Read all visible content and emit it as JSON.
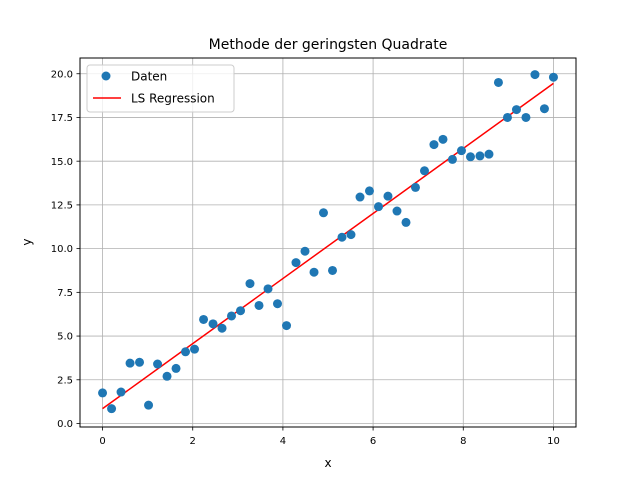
{
  "chart_data": {
    "type": "scatter",
    "title": "Methode der geringsten Quadrate",
    "xlabel": "x",
    "ylabel": "y",
    "xlim": [
      -0.5,
      10.5
    ],
    "ylim": [
      -0.2,
      20.9
    ],
    "xticks": [
      0,
      2,
      4,
      6,
      8,
      10
    ],
    "yticks": [
      0.0,
      2.5,
      5.0,
      7.5,
      10.0,
      12.5,
      15.0,
      17.5,
      20.0
    ],
    "xtick_labels": [
      "0",
      "2",
      "4",
      "6",
      "8",
      "10"
    ],
    "ytick_labels": [
      "0.0",
      "2.5",
      "5.0",
      "7.5",
      "10.0",
      "12.5",
      "15.0",
      "17.5",
      "20.0"
    ],
    "grid": true,
    "legend_position": "top-left",
    "series": [
      {
        "name": "Daten",
        "kind": "scatter",
        "color": "#1f77b4",
        "x": [
          0.0,
          0.2,
          0.41,
          0.61,
          0.82,
          1.02,
          1.22,
          1.43,
          1.63,
          1.84,
          2.04,
          2.24,
          2.45,
          2.65,
          2.86,
          3.06,
          3.27,
          3.47,
          3.67,
          3.88,
          4.08,
          4.29,
          4.49,
          4.69,
          4.9,
          5.1,
          5.31,
          5.51,
          5.71,
          5.92,
          6.12,
          6.33,
          6.53,
          6.73,
          6.94,
          7.14,
          7.35,
          7.55,
          7.76,
          7.96,
          8.16,
          8.37,
          8.57,
          8.78,
          8.98,
          9.18,
          9.39,
          9.59,
          9.8,
          10.0
        ],
        "y": [
          1.75,
          0.85,
          1.8,
          3.45,
          3.5,
          1.05,
          3.4,
          2.7,
          3.15,
          4.1,
          4.25,
          5.95,
          5.7,
          5.45,
          6.15,
          6.45,
          8.0,
          6.75,
          7.7,
          6.85,
          5.6,
          9.2,
          9.85,
          8.65,
          12.05,
          8.75,
          10.65,
          10.8,
          12.95,
          13.3,
          12.4,
          13.0,
          12.15,
          11.5,
          13.5,
          14.45,
          15.95,
          16.25,
          15.1,
          15.6,
          15.25,
          15.3,
          15.4,
          19.5,
          17.5,
          17.95,
          17.5,
          19.95,
          18.0,
          19.8
        ]
      },
      {
        "name": "LS Regression",
        "kind": "line",
        "color": "#ff0000",
        "x": [
          0,
          10
        ],
        "y": [
          0.85,
          19.45
        ]
      }
    ]
  }
}
